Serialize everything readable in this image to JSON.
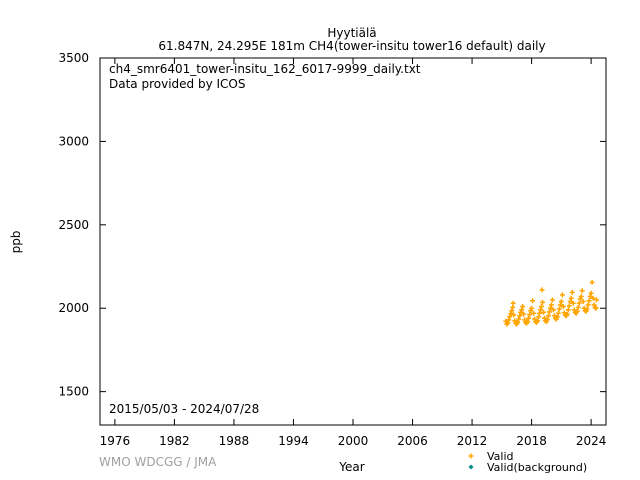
{
  "chart_data": {
    "type": "scatter",
    "title": "Hyytiälä",
    "subtitle": "61.847N, 24.295E 181m    CH4(tower-insitu tower16 default) daily",
    "annotations": [
      "ch4_smr6401_tower-insitu_162_6017-9999_daily.txt",
      "Data provided by ICOS"
    ],
    "date_range": "2015/05/03 - 2024/07/28",
    "xlabel": "Year",
    "ylabel": "ppb",
    "xlim": [
      1974.5,
      2025.5
    ],
    "ylim": [
      1300,
      3500
    ],
    "x_ticks": [
      1976,
      1982,
      1988,
      1994,
      2000,
      2006,
      2012,
      2018,
      2024
    ],
    "y_ticks": [
      1500,
      2000,
      2500,
      3000,
      3500
    ],
    "grid": false,
    "legend_position": "bottom-right",
    "series": [
      {
        "name": "Valid",
        "color": "#ffa500",
        "marker": "plus",
        "points": [
          [
            2015.4,
            1922
          ],
          [
            2015.5,
            1905
          ],
          [
            2015.6,
            1912
          ],
          [
            2015.7,
            1930
          ],
          [
            2015.8,
            1950
          ],
          [
            2015.9,
            1968
          ],
          [
            2016.0,
            1985
          ],
          [
            2016.1,
            2005
          ],
          [
            2016.15,
            2030
          ],
          [
            2016.2,
            1960
          ],
          [
            2016.3,
            1925
          ],
          [
            2016.4,
            1910
          ],
          [
            2016.5,
            1905
          ],
          [
            2016.6,
            1915
          ],
          [
            2016.7,
            1935
          ],
          [
            2016.8,
            1955
          ],
          [
            2016.9,
            1975
          ],
          [
            2017.0,
            1990
          ],
          [
            2017.1,
            2010
          ],
          [
            2017.2,
            1965
          ],
          [
            2017.3,
            1930
          ],
          [
            2017.4,
            1915
          ],
          [
            2017.5,
            1910
          ],
          [
            2017.6,
            1920
          ],
          [
            2017.7,
            1940
          ],
          [
            2017.8,
            1962
          ],
          [
            2017.9,
            1985
          ],
          [
            2018.0,
            2000
          ],
          [
            2018.1,
            2045
          ],
          [
            2018.2,
            1970
          ],
          [
            2018.3,
            1935
          ],
          [
            2018.4,
            1920
          ],
          [
            2018.5,
            1915
          ],
          [
            2018.6,
            1925
          ],
          [
            2018.7,
            1948
          ],
          [
            2018.8,
            1970
          ],
          [
            2018.9,
            1990
          ],
          [
            2019.0,
            2010
          ],
          [
            2019.05,
            2110
          ],
          [
            2019.1,
            2035
          ],
          [
            2019.2,
            1975
          ],
          [
            2019.3,
            1940
          ],
          [
            2019.4,
            1925
          ],
          [
            2019.5,
            1920
          ],
          [
            2019.6,
            1932
          ],
          [
            2019.7,
            1955
          ],
          [
            2019.8,
            1978
          ],
          [
            2019.9,
            2000
          ],
          [
            2020.0,
            2020
          ],
          [
            2020.1,
            2050
          ],
          [
            2020.2,
            1990
          ],
          [
            2020.3,
            1955
          ],
          [
            2020.4,
            1940
          ],
          [
            2020.5,
            1935
          ],
          [
            2020.6,
            1948
          ],
          [
            2020.7,
            1970
          ],
          [
            2020.8,
            1995
          ],
          [
            2020.9,
            2020
          ],
          [
            2021.0,
            2040
          ],
          [
            2021.1,
            2080
          ],
          [
            2021.2,
            2010
          ],
          [
            2021.3,
            1972
          ],
          [
            2021.4,
            1958
          ],
          [
            2021.5,
            1955
          ],
          [
            2021.6,
            1965
          ],
          [
            2021.7,
            1990
          ],
          [
            2021.8,
            2015
          ],
          [
            2021.9,
            2040
          ],
          [
            2022.0,
            2060
          ],
          [
            2022.1,
            2095
          ],
          [
            2022.2,
            2030
          ],
          [
            2022.3,
            1990
          ],
          [
            2022.4,
            1975
          ],
          [
            2022.5,
            1970
          ],
          [
            2022.6,
            1982
          ],
          [
            2022.7,
            2005
          ],
          [
            2022.8,
            2030
          ],
          [
            2022.9,
            2055
          ],
          [
            2023.0,
            2070
          ],
          [
            2023.1,
            2105
          ],
          [
            2023.2,
            2040
          ],
          [
            2023.3,
            2000
          ],
          [
            2023.4,
            1985
          ],
          [
            2023.5,
            1982
          ],
          [
            2023.6,
            1995
          ],
          [
            2023.7,
            2020
          ],
          [
            2023.8,
            2045
          ],
          [
            2023.9,
            2070
          ],
          [
            2024.0,
            2090
          ],
          [
            2024.1,
            2155
          ],
          [
            2024.2,
            2060
          ],
          [
            2024.3,
            2020
          ],
          [
            2024.4,
            2005
          ],
          [
            2024.5,
            2000
          ],
          [
            2024.55,
            2050
          ]
        ]
      },
      {
        "name": "Valid(background)",
        "color": "#008b8b",
        "marker": "diamond",
        "points": []
      }
    ]
  },
  "footer": {
    "credit": "WMO WDCGG / JMA"
  }
}
